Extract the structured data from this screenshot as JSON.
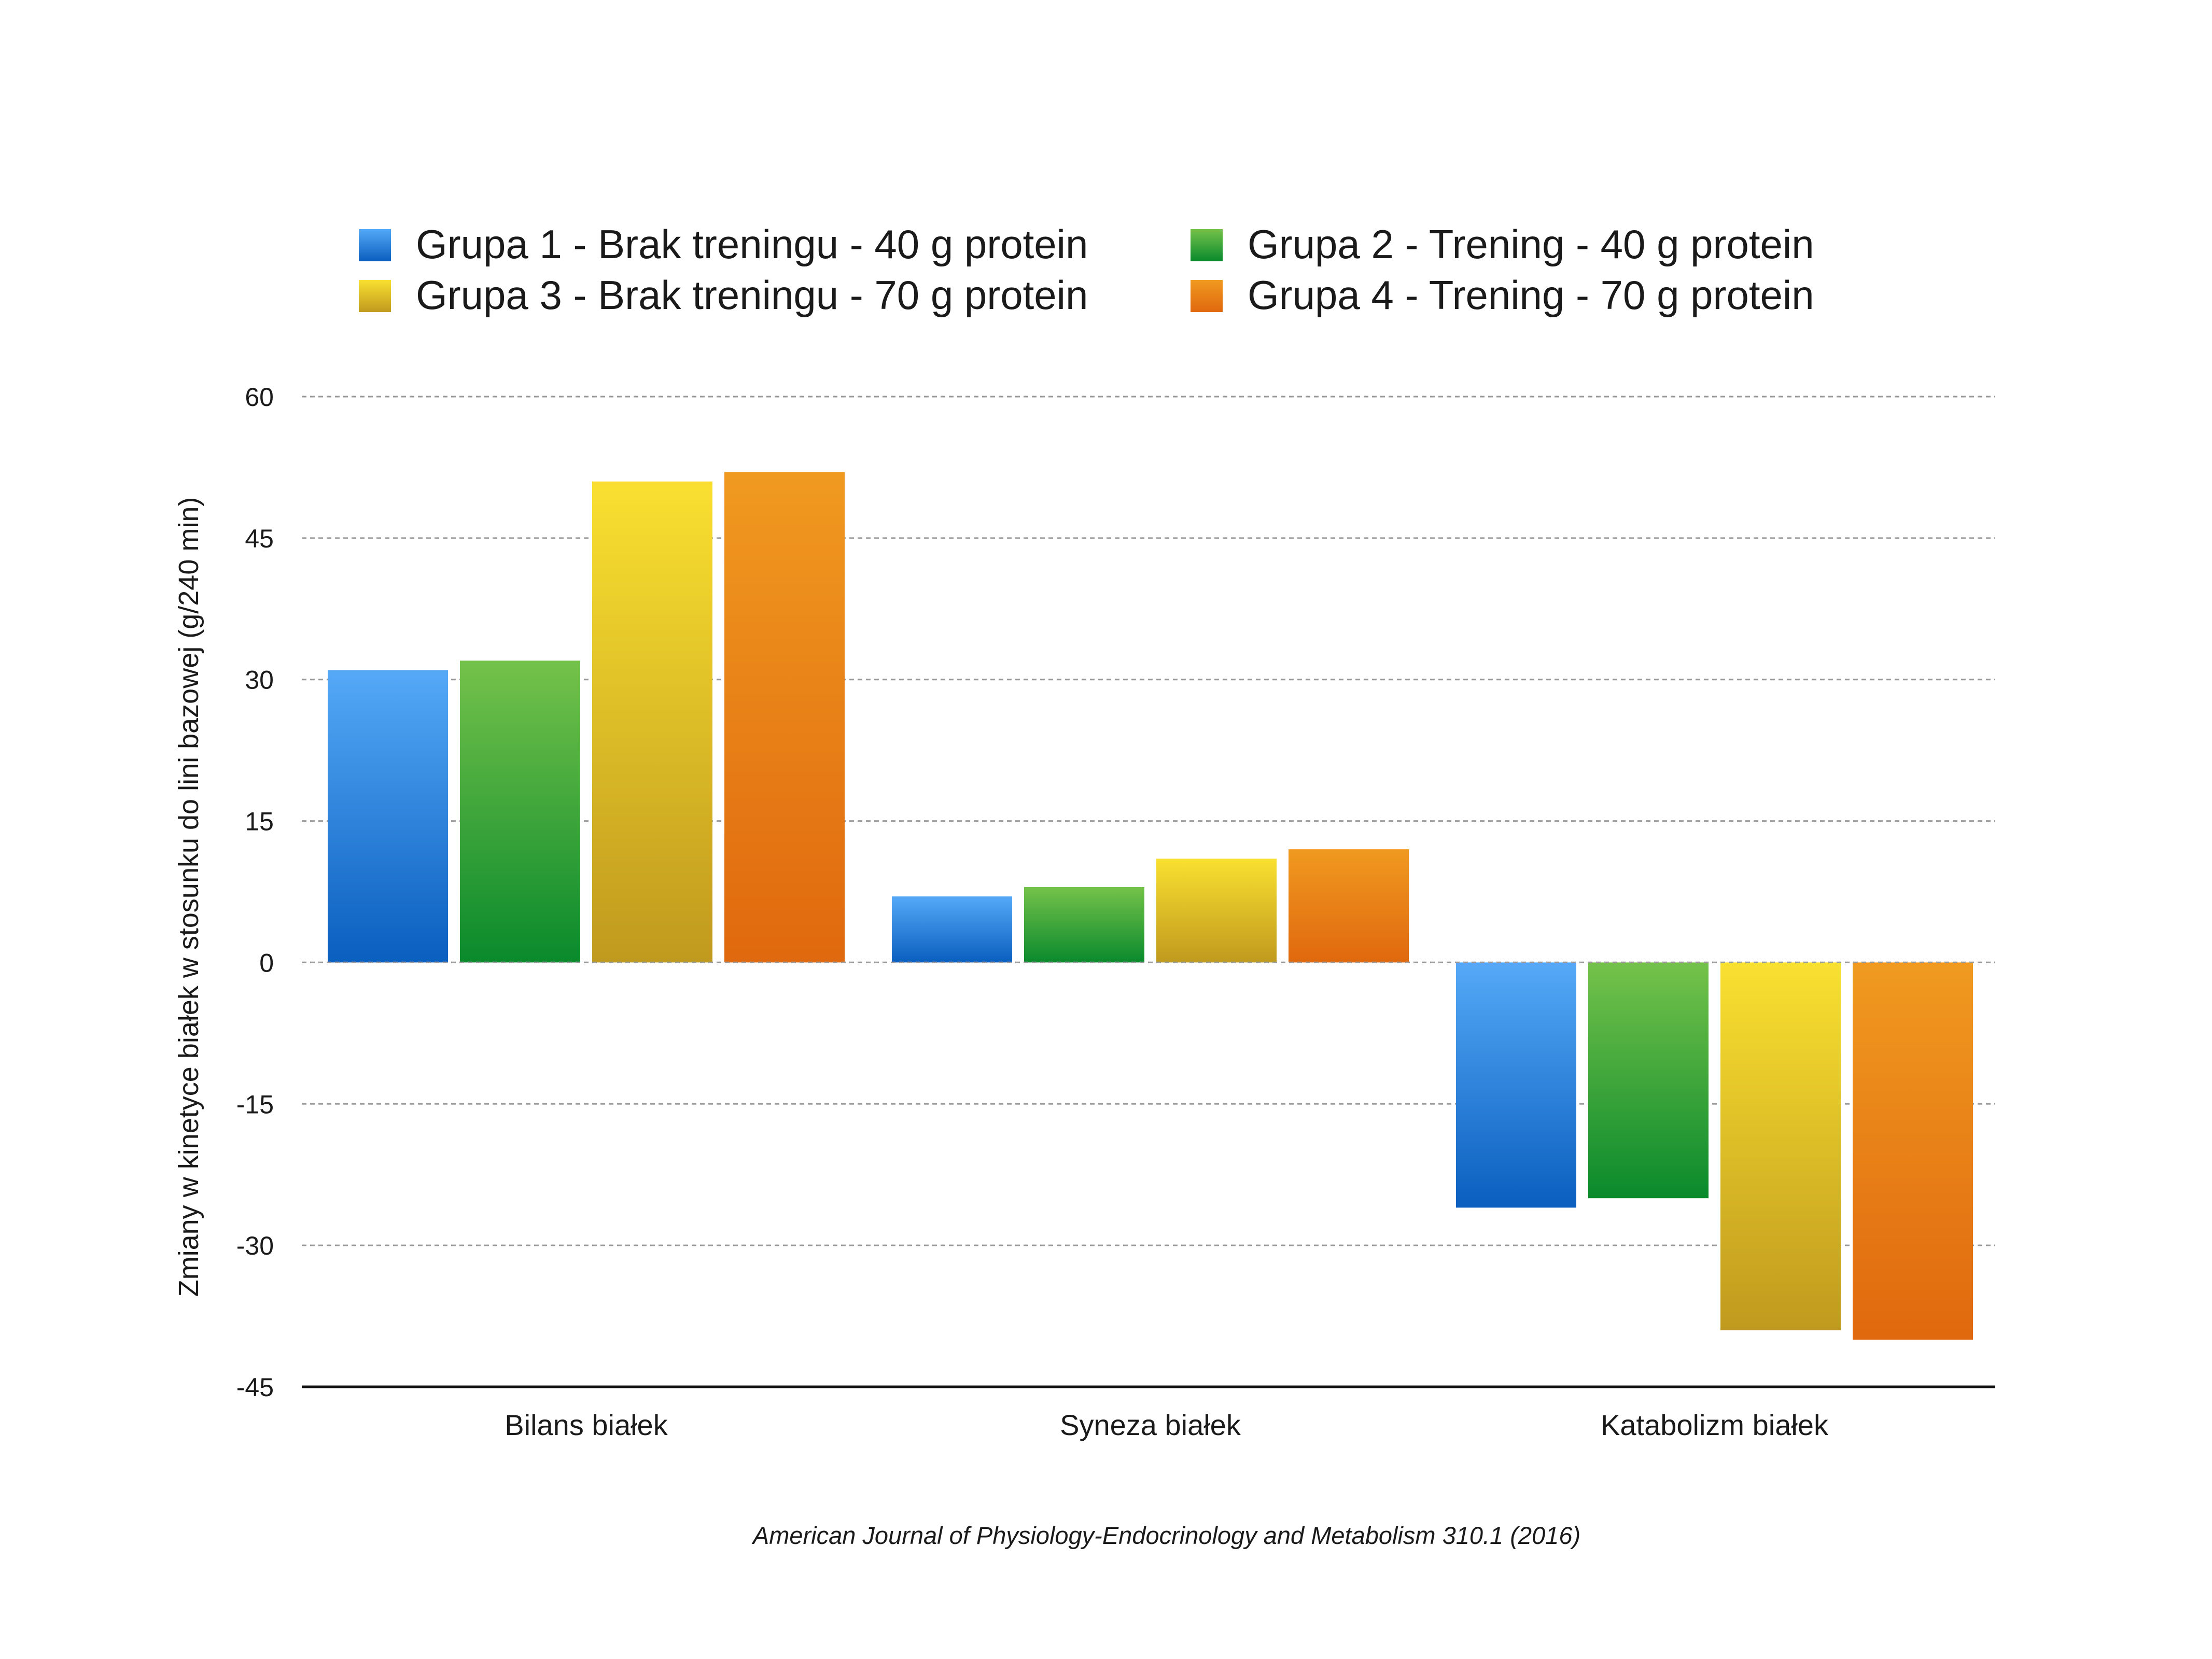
{
  "chart_data": {
    "type": "bar",
    "categories": [
      "Bilans białek",
      "Syneza białek",
      "Katabolizm białek"
    ],
    "series": [
      {
        "name": "Grupa 1 - Brak treningu - 40 g protein",
        "values": [
          31,
          7,
          -26
        ],
        "color_top": "#55a9f7",
        "color_bottom": "#0a5fbf"
      },
      {
        "name": "Grupa 2 - Trening - 40 g protein",
        "values": [
          32,
          8,
          -25
        ],
        "color_top": "#74c24a",
        "color_bottom": "#0a8a2c"
      },
      {
        "name": "Grupa 3 - Brak treningu - 70 g protein",
        "values": [
          51,
          11,
          -39
        ],
        "color_top": "#f9e030",
        "color_bottom": "#c09a1e"
      },
      {
        "name": "Grupa 4 - Trening - 70 g protein",
        "values": [
          52,
          12,
          -40
        ],
        "color_top": "#f09a20",
        "color_bottom": "#e0680e"
      }
    ],
    "ylim": [
      -45,
      60
    ],
    "yticks": [
      "60",
      "45",
      "30",
      "15",
      "0",
      "-15",
      "-30",
      "-45"
    ],
    "ylabel": "Zmiany w kinetyce białek  w stosunku do lini bazowej (g/240 min)",
    "xlabel": "",
    "grid": true,
    "legend_position": "top"
  },
  "source": "American Journal of Physiology-Endocrinology and Metabolism 310.1 (2016)"
}
